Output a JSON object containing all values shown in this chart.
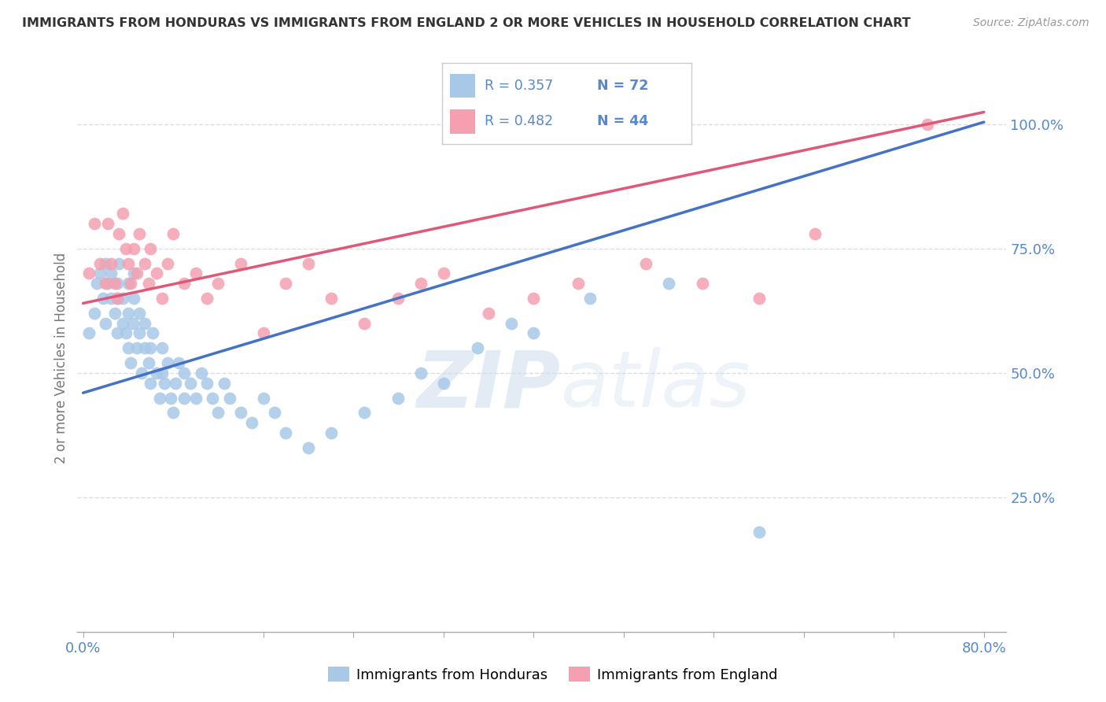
{
  "title": "IMMIGRANTS FROM HONDURAS VS IMMIGRANTS FROM ENGLAND 2 OR MORE VEHICLES IN HOUSEHOLD CORRELATION CHART",
  "source": "Source: ZipAtlas.com",
  "ylabel": "2 or more Vehicles in Household",
  "y_ticks": [
    0.0,
    0.25,
    0.5,
    0.75,
    1.0
  ],
  "y_tick_labels": [
    "",
    "25.0%",
    "50.0%",
    "75.0%",
    "100.0%"
  ],
  "xlim": [
    -0.005,
    0.82
  ],
  "ylim": [
    -0.02,
    1.08
  ],
  "legend_r_blue": "R = 0.357",
  "legend_n_blue": "N = 72",
  "legend_r_pink": "R = 0.482",
  "legend_n_pink": "N = 44",
  "blue_color": "#A8C8E8",
  "pink_color": "#F4A0B0",
  "trend_blue": "#4472C4",
  "trend_pink": "#E05878",
  "trend_dashed_color": "#AACCEE",
  "watermark_zip": "ZIP",
  "watermark_atlas": "atlas",
  "blue_scatter_x": [
    0.005,
    0.01,
    0.012,
    0.015,
    0.018,
    0.02,
    0.02,
    0.022,
    0.025,
    0.025,
    0.028,
    0.03,
    0.03,
    0.03,
    0.032,
    0.035,
    0.035,
    0.038,
    0.04,
    0.04,
    0.04,
    0.042,
    0.044,
    0.045,
    0.045,
    0.048,
    0.05,
    0.05,
    0.052,
    0.055,
    0.055,
    0.058,
    0.06,
    0.06,
    0.062,
    0.065,
    0.068,
    0.07,
    0.07,
    0.072,
    0.075,
    0.078,
    0.08,
    0.082,
    0.085,
    0.09,
    0.09,
    0.095,
    0.1,
    0.105,
    0.11,
    0.115,
    0.12,
    0.125,
    0.13,
    0.14,
    0.15,
    0.16,
    0.17,
    0.18,
    0.2,
    0.22,
    0.25,
    0.28,
    0.3,
    0.32,
    0.35,
    0.38,
    0.4,
    0.45,
    0.52,
    0.6
  ],
  "blue_scatter_y": [
    0.58,
    0.62,
    0.68,
    0.7,
    0.65,
    0.6,
    0.72,
    0.68,
    0.65,
    0.7,
    0.62,
    0.58,
    0.65,
    0.68,
    0.72,
    0.6,
    0.65,
    0.58,
    0.55,
    0.62,
    0.68,
    0.52,
    0.6,
    0.65,
    0.7,
    0.55,
    0.58,
    0.62,
    0.5,
    0.55,
    0.6,
    0.52,
    0.48,
    0.55,
    0.58,
    0.5,
    0.45,
    0.5,
    0.55,
    0.48,
    0.52,
    0.45,
    0.42,
    0.48,
    0.52,
    0.45,
    0.5,
    0.48,
    0.45,
    0.5,
    0.48,
    0.45,
    0.42,
    0.48,
    0.45,
    0.42,
    0.4,
    0.45,
    0.42,
    0.38,
    0.35,
    0.38,
    0.42,
    0.45,
    0.5,
    0.48,
    0.55,
    0.6,
    0.58,
    0.65,
    0.68,
    0.18
  ],
  "pink_scatter_x": [
    0.005,
    0.01,
    0.015,
    0.02,
    0.022,
    0.025,
    0.028,
    0.03,
    0.032,
    0.035,
    0.038,
    0.04,
    0.042,
    0.045,
    0.048,
    0.05,
    0.055,
    0.058,
    0.06,
    0.065,
    0.07,
    0.075,
    0.08,
    0.09,
    0.1,
    0.11,
    0.12,
    0.14,
    0.16,
    0.18,
    0.2,
    0.22,
    0.25,
    0.28,
    0.3,
    0.32,
    0.36,
    0.4,
    0.44,
    0.5,
    0.55,
    0.6,
    0.65,
    0.75
  ],
  "pink_scatter_y": [
    0.7,
    0.8,
    0.72,
    0.68,
    0.8,
    0.72,
    0.68,
    0.65,
    0.78,
    0.82,
    0.75,
    0.72,
    0.68,
    0.75,
    0.7,
    0.78,
    0.72,
    0.68,
    0.75,
    0.7,
    0.65,
    0.72,
    0.78,
    0.68,
    0.7,
    0.65,
    0.68,
    0.72,
    0.58,
    0.68,
    0.72,
    0.65,
    0.6,
    0.65,
    0.68,
    0.7,
    0.62,
    0.65,
    0.68,
    0.72,
    0.68,
    0.65,
    0.78,
    1.0
  ],
  "grid_color": "#DDDDDD",
  "background_color": "#FFFFFF",
  "blue_trend_intercept": 0.46,
  "blue_trend_slope": 0.68,
  "pink_trend_intercept": 0.64,
  "pink_trend_slope": 0.48
}
